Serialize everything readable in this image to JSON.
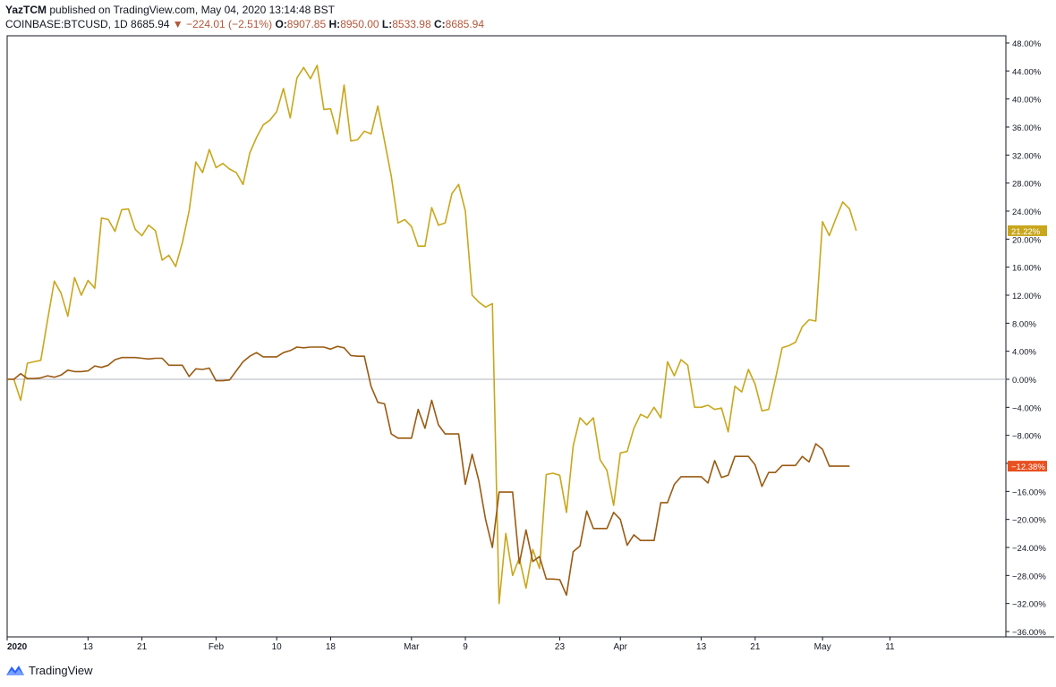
{
  "header": {
    "author": "YazTCM",
    "published_text": " published on TradingView.com, May 04, 2020 13:14:48 BST",
    "symbol": "COINBASE:BTCUSD, 1D",
    "last": "8685.94",
    "change": "−224.01 (−2.51%)",
    "open_label": "O:",
    "open": "8907.85",
    "high_label": "H:",
    "high": "8950.00",
    "low_label": "L:",
    "low": "8533.98",
    "close_label": "C:",
    "close": "8685.94"
  },
  "footer": {
    "brand": "TradingView"
  },
  "colors": {
    "series_gold": "#c9a71c",
    "series_brown": "#9a5b13",
    "badge_gold": "#c9a71c",
    "badge_red": "#e8501f",
    "zero_line": "#b2b5be",
    "axis": "#131722"
  },
  "chart_data": {
    "type": "line",
    "ylim": [
      -36,
      48
    ],
    "y_ticks": [
      "48.00%",
      "44.00%",
      "40.00%",
      "36.00%",
      "32.00%",
      "28.00%",
      "24.00%",
      "20.00%",
      "16.00%",
      "12.00%",
      "8.00%",
      "4.00%",
      "0.00%",
      "−4.00%",
      "−8.00%",
      "−12.00%",
      "−16.00%",
      "−20.00%",
      "−24.00%",
      "−28.00%",
      "−32.00%",
      "−36.00%"
    ],
    "y_tick_values": [
      48,
      44,
      40,
      36,
      32,
      28,
      24,
      20,
      16,
      12,
      8,
      4,
      0,
      -4,
      -8,
      -12,
      -16,
      -20,
      -24,
      -28,
      -32,
      -36
    ],
    "x_start": "2020-01-01",
    "x_end": "2020-05-12",
    "x_ticks": [
      {
        "label": "2020",
        "date": "2020-01-01",
        "bold": true
      },
      {
        "label": "13",
        "date": "2020-01-13"
      },
      {
        "label": "21",
        "date": "2020-01-21"
      },
      {
        "label": "Feb",
        "date": "2020-02-01"
      },
      {
        "label": "10",
        "date": "2020-02-10"
      },
      {
        "label": "18",
        "date": "2020-02-18"
      },
      {
        "label": "Mar",
        "date": "2020-03-01"
      },
      {
        "label": "9",
        "date": "2020-03-09"
      },
      {
        "label": "23",
        "date": "2020-03-23"
      },
      {
        "label": "Apr",
        "date": "2020-04-01"
      },
      {
        "label": "13",
        "date": "2020-04-13"
      },
      {
        "label": "21",
        "date": "2020-04-21"
      },
      {
        "label": "May",
        "date": "2020-05-01"
      },
      {
        "label": "11",
        "date": "2020-05-11"
      }
    ],
    "series": [
      {
        "color": "#c9a71c",
        "last_label": "21.22%",
        "points": [
          [
            "2020-01-01",
            0
          ],
          [
            "2020-01-02",
            0
          ],
          [
            "2020-01-03",
            -3
          ],
          [
            "2020-01-04",
            2.3
          ],
          [
            "2020-01-05",
            2.5
          ],
          [
            "2020-01-06",
            2.7
          ],
          [
            "2020-01-07",
            8.5
          ],
          [
            "2020-01-08",
            14
          ],
          [
            "2020-01-09",
            12.3
          ],
          [
            "2020-01-10",
            9
          ],
          [
            "2020-01-11",
            14.5
          ],
          [
            "2020-01-12",
            12
          ],
          [
            "2020-01-13",
            14.1
          ],
          [
            "2020-01-14",
            13
          ],
          [
            "2020-01-15",
            23
          ],
          [
            "2020-01-16",
            22.8
          ],
          [
            "2020-01-17",
            21.1
          ],
          [
            "2020-01-18",
            24.2
          ],
          [
            "2020-01-19",
            24.3
          ],
          [
            "2020-01-20",
            21.4
          ],
          [
            "2020-01-21",
            20.5
          ],
          [
            "2020-01-22",
            22
          ],
          [
            "2020-01-23",
            21.2
          ],
          [
            "2020-01-24",
            17
          ],
          [
            "2020-01-25",
            17.7
          ],
          [
            "2020-01-26",
            16.1
          ],
          [
            "2020-01-27",
            19.5
          ],
          [
            "2020-01-28",
            24
          ],
          [
            "2020-01-29",
            31
          ],
          [
            "2020-01-30",
            29.5
          ],
          [
            "2020-01-31",
            32.8
          ],
          [
            "2020-02-01",
            30.2
          ],
          [
            "2020-02-02",
            30.8
          ],
          [
            "2020-02-03",
            30
          ],
          [
            "2020-02-04",
            29.5
          ],
          [
            "2020-02-05",
            27.8
          ],
          [
            "2020-02-06",
            32.3
          ],
          [
            "2020-02-07",
            34.5
          ],
          [
            "2020-02-08",
            36.3
          ],
          [
            "2020-02-09",
            37
          ],
          [
            "2020-02-10",
            38.2
          ],
          [
            "2020-02-11",
            41.5
          ],
          [
            "2020-02-12",
            37.3
          ],
          [
            "2020-02-13",
            43
          ],
          [
            "2020-02-14",
            44.5
          ],
          [
            "2020-02-15",
            42.9
          ],
          [
            "2020-02-16",
            44.8
          ],
          [
            "2020-02-17",
            38.5
          ],
          [
            "2020-02-18",
            38.6
          ],
          [
            "2020-02-19",
            35
          ],
          [
            "2020-02-20",
            42
          ],
          [
            "2020-02-21",
            34
          ],
          [
            "2020-02-22",
            34.2
          ],
          [
            "2020-02-23",
            35.4
          ],
          [
            "2020-02-24",
            35
          ],
          [
            "2020-02-25",
            39
          ],
          [
            "2020-02-26",
            34
          ],
          [
            "2020-02-27",
            29
          ],
          [
            "2020-02-28",
            22.3
          ],
          [
            "2020-02-29",
            22.8
          ],
          [
            "2020-03-01",
            21.8
          ],
          [
            "2020-03-02",
            19
          ],
          [
            "2020-03-03",
            19
          ],
          [
            "2020-03-04",
            24.5
          ],
          [
            "2020-03-05",
            22
          ],
          [
            "2020-03-06",
            22.3
          ],
          [
            "2020-03-07",
            26.5
          ],
          [
            "2020-03-08",
            27.8
          ],
          [
            "2020-03-09",
            24
          ],
          [
            "2020-03-10",
            12
          ],
          [
            "2020-03-11",
            11
          ],
          [
            "2020-03-12",
            10.3
          ],
          [
            "2020-03-13",
            10.8
          ],
          [
            "2020-03-14",
            -32
          ],
          [
            "2020-03-15",
            -22
          ],
          [
            "2020-03-16",
            -28
          ],
          [
            "2020-03-17",
            -25.5
          ],
          [
            "2020-03-18",
            -29.8
          ],
          [
            "2020-03-19",
            -24.3
          ],
          [
            "2020-03-20",
            -27
          ],
          [
            "2020-03-21",
            -13.6
          ],
          [
            "2020-03-22",
            -13.4
          ],
          [
            "2020-03-23",
            -13.7
          ],
          [
            "2020-03-24",
            -19
          ],
          [
            "2020-03-25",
            -9.5
          ],
          [
            "2020-03-26",
            -5.5
          ],
          [
            "2020-03-27",
            -6.5
          ],
          [
            "2020-03-28",
            -5.5
          ],
          [
            "2020-03-29",
            -11.5
          ],
          [
            "2020-03-30",
            -13
          ],
          [
            "2020-03-31",
            -18
          ],
          [
            "2020-04-01",
            -10.5
          ],
          [
            "2020-04-02",
            -10.3
          ],
          [
            "2020-04-03",
            -7
          ],
          [
            "2020-04-04",
            -5
          ],
          [
            "2020-04-05",
            -5.5
          ],
          [
            "2020-04-06",
            -4
          ],
          [
            "2020-04-07",
            -5.5
          ],
          [
            "2020-04-08",
            2.5
          ],
          [
            "2020-04-09",
            0.5
          ],
          [
            "2020-04-10",
            2.8
          ],
          [
            "2020-04-11",
            2
          ],
          [
            "2020-04-12",
            -4
          ],
          [
            "2020-04-13",
            -4
          ],
          [
            "2020-04-14",
            -3.7
          ],
          [
            "2020-04-15",
            -4.3
          ],
          [
            "2020-04-16",
            -4.1
          ],
          [
            "2020-04-17",
            -7.5
          ],
          [
            "2020-04-18",
            -1
          ],
          [
            "2020-04-19",
            -1.8
          ],
          [
            "2020-04-20",
            1.4
          ],
          [
            "2020-04-21",
            -0.7
          ],
          [
            "2020-04-22",
            -4.5
          ],
          [
            "2020-04-23",
            -4.3
          ],
          [
            "2020-04-24",
            0
          ],
          [
            "2020-04-25",
            4.5
          ],
          [
            "2020-04-26",
            4.8
          ],
          [
            "2020-04-27",
            5.3
          ],
          [
            "2020-04-28",
            7.5
          ],
          [
            "2020-04-29",
            8.5
          ],
          [
            "2020-04-30",
            8.3
          ],
          [
            "2020-05-01",
            22.5
          ],
          [
            "2020-05-02",
            20.5
          ],
          [
            "2020-05-03",
            23
          ],
          [
            "2020-05-04",
            25.3
          ],
          [
            "2020-05-05",
            24.3
          ],
          [
            "2020-05-06",
            21.2
          ]
        ]
      },
      {
        "color": "#9a5b13",
        "last_label": "−12.38%",
        "points": [
          [
            "2020-01-01",
            0
          ],
          [
            "2020-01-02",
            0
          ],
          [
            "2020-01-03",
            0.8
          ],
          [
            "2020-01-04",
            0.1
          ],
          [
            "2020-01-05",
            0.1
          ],
          [
            "2020-01-06",
            0.2
          ],
          [
            "2020-01-07",
            0.5
          ],
          [
            "2020-01-08",
            0.3
          ],
          [
            "2020-01-09",
            0.6
          ],
          [
            "2020-01-10",
            1.3
          ],
          [
            "2020-01-11",
            1.1
          ],
          [
            "2020-01-12",
            1.1
          ],
          [
            "2020-01-13",
            1.2
          ],
          [
            "2020-01-14",
            1.9
          ],
          [
            "2020-01-15",
            1.7
          ],
          [
            "2020-01-16",
            2
          ],
          [
            "2020-01-17",
            2.8
          ],
          [
            "2020-01-18",
            3.1
          ],
          [
            "2020-01-19",
            3.1
          ],
          [
            "2020-01-20",
            3.1
          ],
          [
            "2020-01-21",
            3
          ],
          [
            "2020-01-22",
            2.9
          ],
          [
            "2020-01-23",
            3
          ],
          [
            "2020-01-24",
            3
          ],
          [
            "2020-01-25",
            2
          ],
          [
            "2020-01-26",
            2
          ],
          [
            "2020-01-27",
            2
          ],
          [
            "2020-01-28",
            0.4
          ],
          [
            "2020-01-29",
            1.5
          ],
          [
            "2020-01-30",
            1.4
          ],
          [
            "2020-01-31",
            1.6
          ],
          [
            "2020-02-01",
            -0.2
          ],
          [
            "2020-02-02",
            -0.2
          ],
          [
            "2020-02-03",
            -0.1
          ],
          [
            "2020-02-04",
            1.2
          ],
          [
            "2020-02-05",
            2.5
          ],
          [
            "2020-02-06",
            3.3
          ],
          [
            "2020-02-07",
            3.8
          ],
          [
            "2020-02-08",
            3.2
          ],
          [
            "2020-02-09",
            3.2
          ],
          [
            "2020-02-10",
            3.2
          ],
          [
            "2020-02-11",
            3.8
          ],
          [
            "2020-02-12",
            4.1
          ],
          [
            "2020-02-13",
            4.6
          ],
          [
            "2020-02-14",
            4.5
          ],
          [
            "2020-02-15",
            4.6
          ],
          [
            "2020-02-16",
            4.6
          ],
          [
            "2020-02-17",
            4.6
          ],
          [
            "2020-02-18",
            4.3
          ],
          [
            "2020-02-19",
            4.7
          ],
          [
            "2020-02-20",
            4.5
          ],
          [
            "2020-02-21",
            3.4
          ],
          [
            "2020-02-22",
            3.3
          ],
          [
            "2020-02-23",
            3.3
          ],
          [
            "2020-02-24",
            -1
          ],
          [
            "2020-02-25",
            -3.3
          ],
          [
            "2020-02-26",
            -3.5
          ],
          [
            "2020-02-27",
            -7.8
          ],
          [
            "2020-02-28",
            -8.4
          ],
          [
            "2020-02-29",
            -8.4
          ],
          [
            "2020-03-01",
            -8.4
          ],
          [
            "2020-03-02",
            -4.3
          ],
          [
            "2020-03-03",
            -7
          ],
          [
            "2020-03-04",
            -3
          ],
          [
            "2020-03-05",
            -6.5
          ],
          [
            "2020-03-06",
            -7.8
          ],
          [
            "2020-03-07",
            -7.8
          ],
          [
            "2020-03-08",
            -7.8
          ],
          [
            "2020-03-09",
            -15
          ],
          [
            "2020-03-10",
            -10.7
          ],
          [
            "2020-03-11",
            -14.5
          ],
          [
            "2020-03-12",
            -20
          ],
          [
            "2020-03-13",
            -24
          ],
          [
            "2020-03-14",
            -16.1
          ],
          [
            "2020-03-15",
            -16.1
          ],
          [
            "2020-03-16",
            -16.1
          ],
          [
            "2020-03-17",
            -26.3
          ],
          [
            "2020-03-18",
            -21.5
          ],
          [
            "2020-03-19",
            -26
          ],
          [
            "2020-03-20",
            -25.3
          ],
          [
            "2020-03-21",
            -28.5
          ],
          [
            "2020-03-22",
            -28.5
          ],
          [
            "2020-03-23",
            -28.6
          ],
          [
            "2020-03-24",
            -30.8
          ],
          [
            "2020-03-25",
            -24.6
          ],
          [
            "2020-03-26",
            -23.8
          ],
          [
            "2020-03-27",
            -18.8
          ],
          [
            "2020-03-28",
            -21.3
          ],
          [
            "2020-03-29",
            -21.3
          ],
          [
            "2020-03-30",
            -21.3
          ],
          [
            "2020-03-31",
            -19
          ],
          [
            "2020-04-01",
            -20
          ],
          [
            "2020-04-02",
            -23.7
          ],
          [
            "2020-04-03",
            -22.2
          ],
          [
            "2020-04-04",
            -23
          ],
          [
            "2020-04-05",
            -23
          ],
          [
            "2020-04-06",
            -23
          ],
          [
            "2020-04-07",
            -17.6
          ],
          [
            "2020-04-08",
            -17.6
          ],
          [
            "2020-04-09",
            -15
          ],
          [
            "2020-04-10",
            -13.9
          ],
          [
            "2020-04-11",
            -13.9
          ],
          [
            "2020-04-12",
            -13.9
          ],
          [
            "2020-04-13",
            -13.9
          ],
          [
            "2020-04-14",
            -14.8
          ],
          [
            "2020-04-15",
            -11.6
          ],
          [
            "2020-04-16",
            -14
          ],
          [
            "2020-04-17",
            -13.7
          ],
          [
            "2020-04-18",
            -11
          ],
          [
            "2020-04-19",
            -11
          ],
          [
            "2020-04-20",
            -11
          ],
          [
            "2020-04-21",
            -12.2
          ],
          [
            "2020-04-22",
            -15.3
          ],
          [
            "2020-04-23",
            -13.3
          ],
          [
            "2020-04-24",
            -13.3
          ],
          [
            "2020-04-25",
            -12.3
          ],
          [
            "2020-04-26",
            -12.3
          ],
          [
            "2020-04-27",
            -12.3
          ],
          [
            "2020-04-28",
            -11
          ],
          [
            "2020-04-29",
            -11.8
          ],
          [
            "2020-04-30",
            -9.2
          ],
          [
            "2020-05-01",
            -10
          ],
          [
            "2020-05-02",
            -12.4
          ],
          [
            "2020-05-03",
            -12.4
          ],
          [
            "2020-05-04",
            -12.4
          ],
          [
            "2020-05-05",
            -12.4
          ]
        ]
      }
    ]
  }
}
